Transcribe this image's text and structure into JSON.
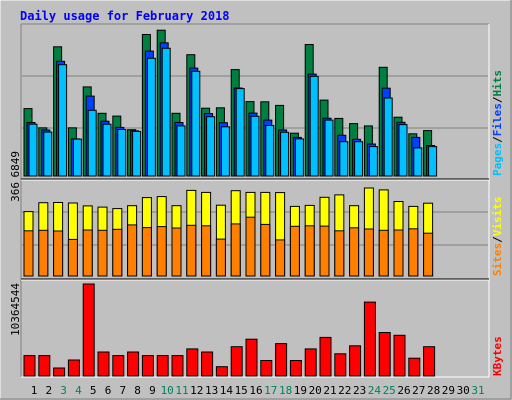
{
  "chart_data": [
    {
      "type": "bar",
      "title": "Daily usage for February 2018",
      "categories": [
        "1",
        "2",
        "3",
        "4",
        "5",
        "6",
        "7",
        "8",
        "9",
        "10",
        "11",
        "12",
        "13",
        "14",
        "15",
        "16",
        "17",
        "18",
        "19",
        "20",
        "21",
        "22",
        "23",
        "24",
        "25",
        "26",
        "27",
        "28",
        "29",
        "30",
        "31"
      ],
      "weekend_days": [
        "3",
        "4",
        "10",
        "11",
        "17",
        "18",
        "24",
        "25",
        "31"
      ],
      "ymax_label": "6849",
      "ymax": 6849,
      "legend": [
        {
          "name": "Pages",
          "color": "#00c0ff"
        },
        {
          "name": "Files",
          "color": "#0040ff"
        },
        {
          "name": "Hits",
          "color": "#008040"
        }
      ],
      "series": [
        {
          "name": "Hits",
          "color": "#008040",
          "values": [
            3160,
            2260,
            6060,
            2260,
            4180,
            2940,
            2810,
            2170,
            6640,
            6840,
            2940,
            5690,
            3180,
            3200,
            4990,
            3490,
            3480,
            3310,
            2010,
            6170,
            3560,
            2700,
            2460,
            2350,
            5100,
            2760,
            1980,
            2130,
            null,
            null,
            null
          ]
        },
        {
          "name": "Files",
          "color": "#0040ff",
          "values": [
            2510,
            2160,
            5380,
            1740,
            3750,
            2570,
            2280,
            2120,
            5860,
            6250,
            2510,
            5060,
            2930,
            2500,
            4130,
            2950,
            2620,
            2160,
            1810,
            4780,
            2710,
            1910,
            1720,
            1500,
            4120,
            2520,
            1810,
            1430,
            null,
            null,
            null
          ]
        },
        {
          "name": "Pages",
          "color": "#00c0ff",
          "values": [
            2430,
            2060,
            5220,
            1730,
            3080,
            2430,
            2180,
            2090,
            5520,
            5990,
            2350,
            4910,
            2780,
            2310,
            4100,
            2800,
            2370,
            2050,
            1740,
            4670,
            2620,
            1610,
            1610,
            1380,
            3660,
            2410,
            1320,
            1380,
            null,
            null,
            null
          ]
        }
      ]
    },
    {
      "type": "bar",
      "ymax_label": "366",
      "ymax": 366,
      "legend": [
        {
          "name": "Sites",
          "color": "#ff8000"
        },
        {
          "name": "Visits",
          "color": "#ffff00"
        }
      ],
      "series": [
        {
          "name": "Visits",
          "color": "#ffff00",
          "values": [
            262,
            298,
            299,
            297,
            285,
            280,
            274,
            286,
            319,
            323,
            286,
            348,
            340,
            288,
            347,
            340,
            340,
            339,
            283,
            287,
            320,
            330,
            286,
            358,
            350,
            303,
            283,
            296,
            null,
            null,
            null
          ]
        },
        {
          "name": "Sites",
          "color": "#ff8000",
          "values": [
            184,
            186,
            183,
            149,
            187,
            186,
            190,
            208,
            197,
            201,
            195,
            206,
            204,
            150,
            212,
            239,
            210,
            147,
            202,
            204,
            203,
            184,
            196,
            191,
            186,
            187,
            192,
            174,
            null,
            null,
            null
          ]
        }
      ]
    },
    {
      "type": "bar",
      "ymax_label": "10364544",
      "ymax": 10364544,
      "legend": [
        {
          "name": "KBytes",
          "color": "#ff0000"
        }
      ],
      "series": [
        {
          "name": "KBytes",
          "color": "#ff0000",
          "values": [
            2300000,
            2300000,
            900000,
            1800000,
            10364544,
            2700000,
            2300000,
            2700000,
            2300000,
            2300000,
            2300000,
            3050000,
            2700000,
            1050000,
            3300000,
            4150000,
            1750000,
            3650000,
            1750000,
            3050000,
            4350000,
            2500000,
            3400000,
            8330000,
            4900000,
            4580000,
            2000000,
            3300000,
            null,
            null,
            null
          ]
        }
      ]
    }
  ],
  "colors": {
    "background": "#c0c0c0",
    "title": "#0000ff",
    "weekday_label": "#000000",
    "weekend_label": "#00805c",
    "grid": "#808080",
    "bar_outline": "#000000",
    "separator": "#000000"
  }
}
